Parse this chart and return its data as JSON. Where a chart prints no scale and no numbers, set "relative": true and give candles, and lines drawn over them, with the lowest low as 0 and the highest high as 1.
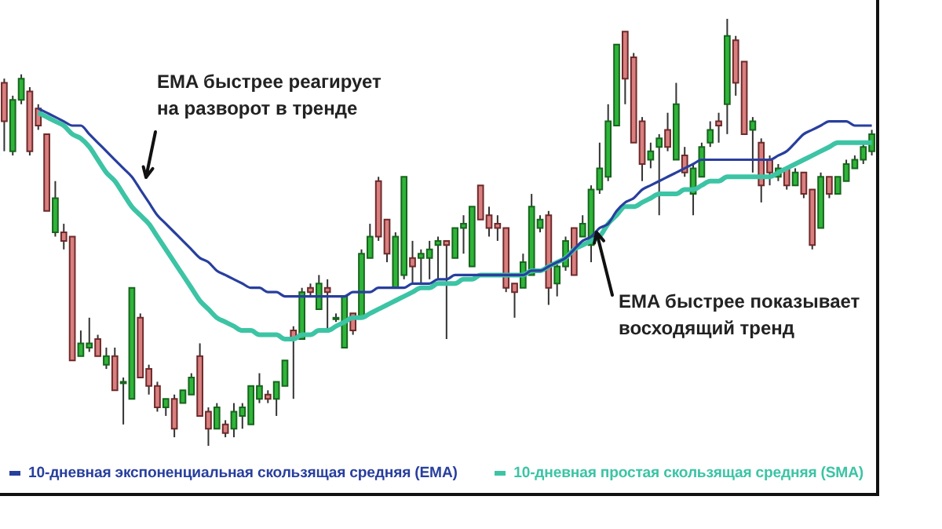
{
  "chart_data": {
    "type": "candlestick",
    "relative": true,
    "legend": "bottom",
    "annotations": [
      "EMA быстрее реагирует на разворот в тренде",
      "EMA быстрее показывает восходящий тренд"
    ],
    "categories": [
      null,
      null,
      null,
      null,
      null,
      null,
      null,
      null,
      null,
      null,
      null,
      null,
      null,
      null,
      null,
      null,
      null,
      null,
      null,
      null,
      null,
      null,
      null,
      null,
      null,
      null,
      null,
      null,
      null,
      null,
      null,
      null,
      null,
      null,
      null,
      null,
      null,
      null,
      null,
      null,
      null,
      null,
      null,
      null,
      null,
      null,
      null,
      null,
      null,
      null,
      null,
      null,
      null,
      null,
      null,
      null,
      null,
      null,
      null,
      null,
      null,
      null,
      null,
      null,
      null,
      null,
      null,
      null,
      null,
      null,
      null,
      null,
      null,
      null,
      null,
      null,
      null,
      null,
      null,
      null,
      null,
      null,
      null,
      null,
      null,
      null,
      null,
      null,
      null,
      null,
      null,
      null,
      null,
      null,
      null,
      null,
      null,
      null,
      null,
      null,
      null,
      null,
      null
    ],
    "ohlc": [
      [
        0.85,
        0.86,
        0.69,
        0.76
      ],
      [
        0.69,
        0.82,
        0.68,
        0.81
      ],
      [
        0.81,
        0.87,
        0.8,
        0.86
      ],
      [
        0.83,
        0.84,
        0.68,
        0.69
      ],
      [
        0.79,
        0.8,
        0.74,
        0.75
      ],
      [
        0.73,
        0.73,
        0.55,
        0.55
      ],
      [
        0.5,
        0.62,
        0.49,
        0.58
      ],
      [
        0.5,
        0.52,
        0.46,
        0.48
      ],
      [
        0.49,
        0.49,
        0.2,
        0.2
      ],
      [
        0.21,
        0.27,
        0.21,
        0.24
      ],
      [
        0.23,
        0.3,
        0.22,
        0.24
      ],
      [
        0.25,
        0.26,
        0.21,
        0.21
      ],
      [
        0.19,
        0.23,
        0.18,
        0.21
      ],
      [
        0.21,
        0.23,
        0.13,
        0.13
      ],
      [
        0.15,
        0.16,
        0.05,
        0.15
      ],
      [
        0.11,
        0.37,
        0.11,
        0.37
      ],
      [
        0.3,
        0.31,
        0.16,
        0.16
      ],
      [
        0.18,
        0.19,
        0.12,
        0.14
      ],
      [
        0.14,
        0.15,
        0.08,
        0.09
      ],
      [
        0.09,
        0.11,
        0.07,
        0.11
      ],
      [
        0.11,
        0.12,
        0.02,
        0.04
      ],
      [
        0.1,
        0.13,
        0.1,
        0.13
      ],
      [
        0.12,
        0.17,
        0.12,
        0.16
      ],
      [
        0.21,
        0.24,
        0.07,
        0.07
      ],
      [
        0.08,
        0.09,
        0.0,
        0.04
      ],
      [
        0.04,
        0.1,
        0.04,
        0.09
      ],
      [
        0.05,
        0.06,
        0.02,
        0.03
      ],
      [
        0.04,
        0.1,
        0.02,
        0.08
      ],
      [
        0.07,
        0.1,
        0.04,
        0.09
      ],
      [
        0.05,
        0.14,
        0.05,
        0.14
      ],
      [
        0.11,
        0.17,
        0.1,
        0.14
      ],
      [
        0.12,
        0.13,
        0.1,
        0.11
      ],
      [
        0.11,
        0.15,
        0.07,
        0.15
      ],
      [
        0.14,
        0.2,
        0.14,
        0.2
      ],
      [
        0.27,
        0.28,
        0.11,
        0.25
      ],
      [
        0.25,
        0.37,
        0.25,
        0.36
      ],
      [
        0.37,
        0.38,
        0.35,
        0.36
      ],
      [
        0.32,
        0.4,
        0.32,
        0.38
      ],
      [
        0.37,
        0.39,
        0.27,
        0.36
      ],
      [
        0.3,
        0.31,
        0.29,
        0.3
      ],
      [
        0.23,
        0.35,
        0.23,
        0.35
      ],
      [
        0.31,
        0.31,
        0.26,
        0.27
      ],
      [
        0.3,
        0.46,
        0.3,
        0.45
      ],
      [
        0.44,
        0.52,
        0.44,
        0.49
      ],
      [
        0.62,
        0.63,
        0.48,
        0.49
      ],
      [
        0.53,
        0.53,
        0.43,
        0.45
      ],
      [
        0.37,
        0.5,
        0.37,
        0.49
      ],
      [
        0.4,
        0.63,
        0.39,
        0.63
      ],
      [
        0.44,
        0.48,
        0.38,
        0.42
      ],
      [
        0.44,
        0.46,
        0.38,
        0.45
      ],
      [
        0.44,
        0.48,
        0.39,
        0.46
      ],
      [
        0.47,
        0.49,
        0.39,
        0.48
      ],
      [
        0.48,
        0.48,
        0.25,
        0.47
      ],
      [
        0.44,
        0.51,
        0.44,
        0.51
      ],
      [
        0.51,
        0.54,
        0.45,
        0.52
      ],
      [
        0.42,
        0.56,
        0.42,
        0.56
      ],
      [
        0.61,
        0.61,
        0.53,
        0.53
      ],
      [
        0.54,
        0.56,
        0.49,
        0.51
      ],
      [
        0.52,
        0.54,
        0.48,
        0.51
      ],
      [
        0.51,
        0.51,
        0.36,
        0.37
      ],
      [
        0.38,
        0.38,
        0.3,
        0.36
      ],
      [
        0.37,
        0.45,
        0.37,
        0.43
      ],
      [
        0.4,
        0.59,
        0.4,
        0.56
      ],
      [
        0.51,
        0.54,
        0.5,
        0.53
      ],
      [
        0.54,
        0.55,
        0.33,
        0.37
      ],
      [
        0.38,
        0.43,
        0.35,
        0.42
      ],
      [
        0.42,
        0.49,
        0.41,
        0.48
      ],
      [
        0.51,
        0.51,
        0.4,
        0.4
      ],
      [
        0.49,
        0.54,
        0.49,
        0.52
      ],
      [
        0.47,
        0.61,
        0.43,
        0.6
      ],
      [
        0.6,
        0.71,
        0.59,
        0.65
      ],
      [
        0.63,
        0.8,
        0.62,
        0.76
      ],
      [
        0.75,
        0.94,
        0.75,
        0.94
      ],
      [
        0.97,
        0.97,
        0.8,
        0.86
      ],
      [
        0.91,
        0.92,
        0.71,
        0.71
      ],
      [
        0.76,
        0.77,
        0.62,
        0.66
      ],
      [
        0.67,
        0.71,
        0.65,
        0.69
      ],
      [
        0.7,
        0.73,
        0.54,
        0.72
      ],
      [
        0.74,
        0.78,
        0.69,
        0.7
      ],
      [
        0.67,
        0.85,
        0.67,
        0.8
      ],
      [
        0.68,
        0.7,
        0.63,
        0.64
      ],
      [
        0.59,
        0.66,
        0.54,
        0.65
      ],
      [
        0.63,
        0.71,
        0.63,
        0.7
      ],
      [
        0.71,
        0.76,
        0.7,
        0.74
      ],
      [
        0.76,
        0.78,
        0.71,
        0.75
      ],
      [
        0.8,
        1.0,
        0.73,
        0.96
      ],
      [
        0.95,
        0.96,
        0.82,
        0.85
      ],
      [
        0.9,
        0.9,
        0.73,
        0.73
      ],
      [
        0.74,
        0.77,
        0.64,
        0.76
      ],
      [
        0.71,
        0.72,
        0.57,
        0.61
      ],
      [
        0.67,
        0.68,
        0.61,
        0.64
      ],
      [
        0.63,
        0.66,
        0.62,
        0.65
      ],
      [
        0.65,
        0.65,
        0.6,
        0.61
      ],
      [
        0.61,
        0.65,
        0.61,
        0.64
      ],
      [
        0.64,
        0.64,
        0.58,
        0.59
      ],
      [
        0.6,
        0.6,
        0.46,
        0.47
      ],
      [
        0.51,
        0.64,
        0.51,
        0.63
      ],
      [
        0.63,
        0.63,
        0.58,
        0.59
      ],
      [
        0.59,
        0.63,
        0.59,
        0.63
      ],
      [
        0.62,
        0.67,
        0.62,
        0.66
      ],
      [
        0.65,
        0.68,
        0.65,
        0.67
      ],
      [
        0.67,
        0.71,
        0.66,
        0.7
      ],
      [
        0.69,
        0.74,
        0.68,
        0.73
      ]
    ],
    "series": [
      {
        "type": "line",
        "name": "10-дневная экспоненциальная скользящая средняя (EMA)",
        "color": "#283f9e",
        "values": [
          null,
          null,
          null,
          null,
          0.79,
          0.78,
          0.77,
          0.76,
          0.75,
          0.75,
          0.73,
          0.71,
          0.69,
          0.67,
          0.65,
          0.63,
          0.6,
          0.57,
          0.54,
          0.52,
          0.5,
          0.48,
          0.46,
          0.44,
          0.43,
          0.41,
          0.4,
          0.39,
          0.38,
          0.37,
          0.37,
          0.36,
          0.36,
          0.35,
          0.35,
          0.35,
          0.35,
          0.35,
          0.35,
          0.35,
          0.35,
          0.36,
          0.36,
          0.36,
          0.37,
          0.37,
          0.37,
          0.37,
          0.38,
          0.38,
          0.38,
          0.39,
          0.39,
          0.4,
          0.4,
          0.4,
          0.4,
          0.4,
          0.4,
          0.4,
          0.4,
          0.4,
          0.41,
          0.41,
          0.42,
          0.43,
          0.44,
          0.46,
          0.48,
          0.49,
          0.51,
          0.52,
          0.55,
          0.57,
          0.58,
          0.6,
          0.61,
          0.62,
          0.63,
          0.64,
          0.65,
          0.66,
          0.67,
          0.67,
          0.67,
          0.67,
          0.67,
          0.67,
          0.67,
          0.67,
          0.67,
          0.68,
          0.69,
          0.71,
          0.73,
          0.74,
          0.75,
          0.76,
          0.76,
          0.76,
          0.75,
          0.75,
          0.75
        ]
      },
      {
        "type": "line",
        "name": "10-дневная простая скользящая средняя (SMA)",
        "color": "#3cc4a5",
        "values": [
          null,
          null,
          null,
          null,
          0.78,
          0.77,
          0.76,
          0.75,
          0.73,
          0.72,
          0.7,
          0.67,
          0.64,
          0.62,
          0.59,
          0.56,
          0.54,
          0.52,
          0.49,
          0.46,
          0.43,
          0.4,
          0.37,
          0.34,
          0.32,
          0.3,
          0.29,
          0.28,
          0.27,
          0.27,
          0.26,
          0.26,
          0.26,
          0.25,
          0.25,
          0.26,
          0.26,
          0.27,
          0.27,
          0.28,
          0.29,
          0.3,
          0.3,
          0.31,
          0.32,
          0.33,
          0.34,
          0.35,
          0.36,
          0.37,
          0.37,
          0.38,
          0.38,
          0.38,
          0.39,
          0.39,
          0.4,
          0.4,
          0.4,
          0.4,
          0.4,
          0.4,
          0.41,
          0.41,
          0.42,
          0.43,
          0.44,
          0.46,
          0.47,
          0.48,
          0.49,
          0.52,
          0.54,
          0.56,
          0.56,
          0.57,
          0.58,
          0.59,
          0.59,
          0.59,
          0.6,
          0.6,
          0.61,
          0.62,
          0.62,
          0.63,
          0.63,
          0.63,
          0.63,
          0.63,
          0.63,
          0.64,
          0.65,
          0.66,
          0.67,
          0.68,
          0.69,
          0.7,
          0.71,
          0.71,
          0.71,
          0.71,
          0.71
        ]
      }
    ]
  }
}
